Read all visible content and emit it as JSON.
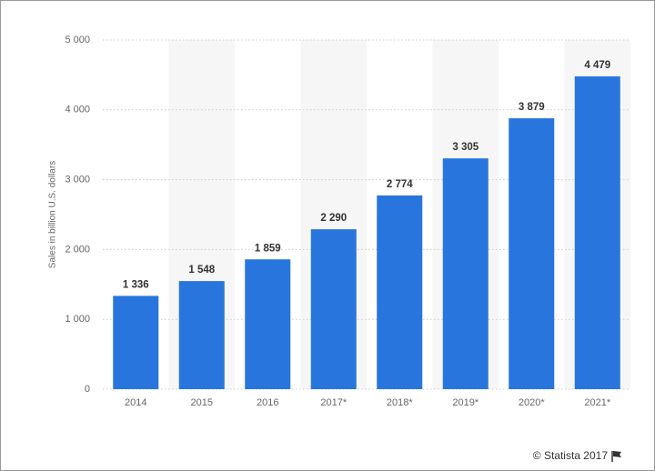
{
  "chart_data": {
    "type": "bar",
    "y_axis_label": "Sales in billion U.S. dollars",
    "categories": [
      "2014",
      "2015",
      "2016",
      "2017*",
      "2018*",
      "2019*",
      "2020*",
      "2021*"
    ],
    "values": [
      1336,
      1548,
      1859,
      2290,
      2774,
      3305,
      3879,
      4479
    ],
    "value_labels": [
      "1 336",
      "1 548",
      "1 859",
      "2 290",
      "2 774",
      "3 305",
      "3 879",
      "4 479"
    ],
    "color": "#2876dd",
    "ylim": [
      0,
      5000
    ],
    "yticks": [
      0,
      {
        "value": 1000,
        "label": "1 000"
      },
      {
        "value": 2000,
        "label": "2 000"
      },
      {
        "value": 3000,
        "label": "3 000"
      },
      {
        "value": 4000,
        "label": "4 000"
      },
      {
        "value": 5000,
        "label": "5 000"
      }
    ],
    "grid": true,
    "source": "© Statista 2017"
  }
}
